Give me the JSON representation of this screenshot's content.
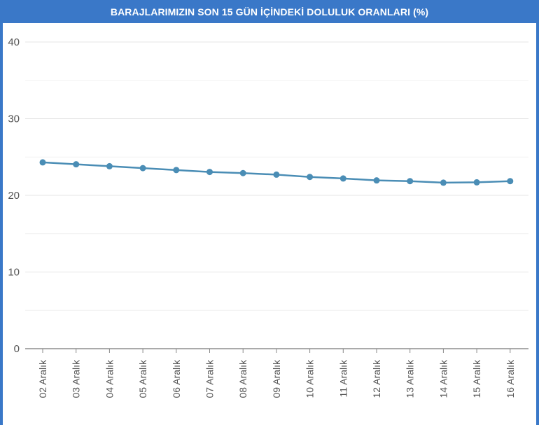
{
  "chart_data": {
    "type": "line",
    "title": "BARAJLARIMIZIN SON 15 GÜN İÇİNDEKİ DOLULUK ORANLARI (%)",
    "xlabel": "",
    "ylabel": "",
    "ylim": [
      0,
      40
    ],
    "yticks": [
      "0",
      "10",
      "20",
      "30",
      "40"
    ],
    "grid": true,
    "categories": [
      "02 Aralık",
      "03 Aralık",
      "04 Aralık",
      "05 Aralık",
      "06 Aralık",
      "07 Aralık",
      "08 Aralık",
      "09 Aralık",
      "10 Aralık",
      "11 Aralık",
      "12 Aralık",
      "13 Aralık",
      "14 Aralık",
      "15 Aralık",
      "16 Aralık"
    ],
    "values": [
      24.3,
      24.05,
      23.8,
      23.55,
      23.3,
      23.05,
      22.9,
      22.7,
      22.4,
      22.2,
      21.95,
      21.85,
      21.65,
      21.7,
      21.85
    ],
    "colors": {
      "line": "#4a8db5",
      "accent": "#3a78c8",
      "grid": "#e4e4e4"
    }
  }
}
